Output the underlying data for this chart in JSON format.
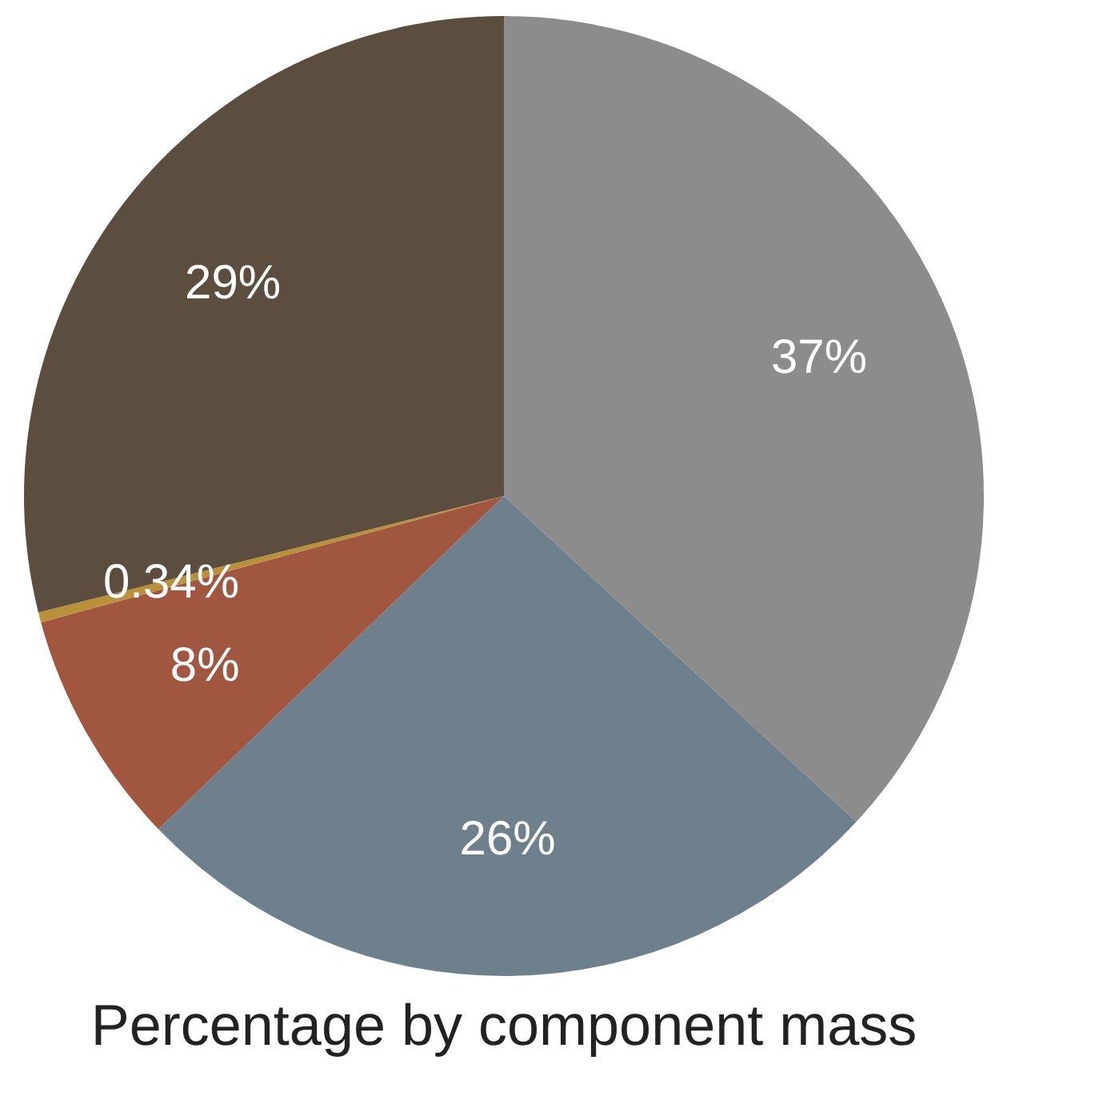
{
  "chart_data": {
    "type": "pie",
    "title": "Percentage by component mass",
    "categories": [
      null,
      null,
      null,
      null,
      null
    ],
    "values": [
      37,
      26,
      8,
      0.34,
      29
    ],
    "colors": [
      "#8c8c8c",
      "#6e808b",
      "#a1563f",
      "#b8913a",
      "#5b4e3e"
    ],
    "value_labels": [
      "37%",
      "26%",
      "8%",
      "0.34%",
      "29%"
    ]
  }
}
